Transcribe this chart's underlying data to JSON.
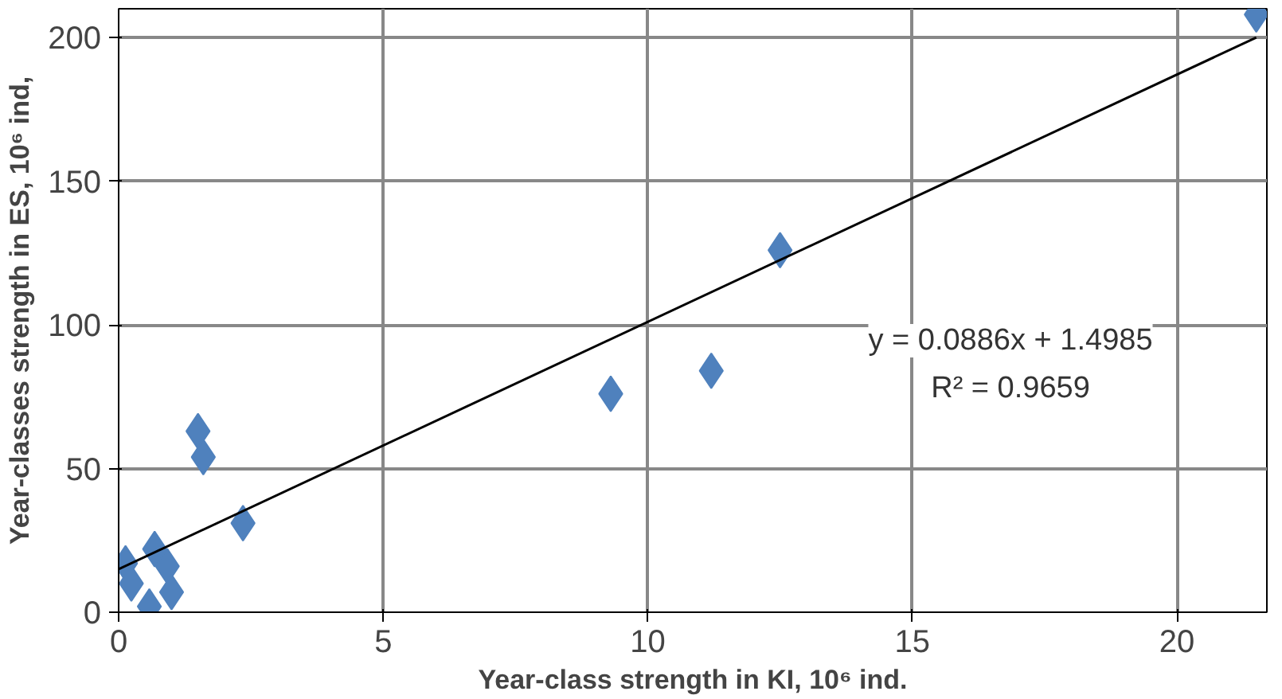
{
  "chart_data": {
    "type": "scatter",
    "xlabel": "Year-class strength in KI, 10⁶ ind.",
    "ylabel": "Year-classes strength in ES, 10⁶ ind,",
    "xlim": [
      0,
      21.7
    ],
    "ylim": [
      0,
      210
    ],
    "xticks": [
      0,
      5,
      10,
      15,
      20
    ],
    "yticks": [
      0,
      50,
      100,
      150,
      200
    ],
    "grid": true,
    "series": [
      {
        "color": "#4f81bd",
        "marker": "diamond",
        "x": [
          0.13,
          0.24,
          0.68,
          0.92,
          1.0,
          0.58,
          1.5,
          1.6,
          2.35,
          9.3,
          11.2,
          12.5,
          21.5
        ],
        "values": [
          17,
          10,
          22,
          16,
          7,
          2,
          63,
          54,
          31,
          76,
          84,
          126,
          208
        ]
      },
      {
        "type": "line",
        "marker": "none",
        "color": "#000000",
        "x": [
          0,
          21.5
        ],
        "values": [
          15,
          200
        ]
      }
    ],
    "annotations": [
      "y = 0.0886x + 1.4985",
      "R² = 0.9659"
    ]
  }
}
